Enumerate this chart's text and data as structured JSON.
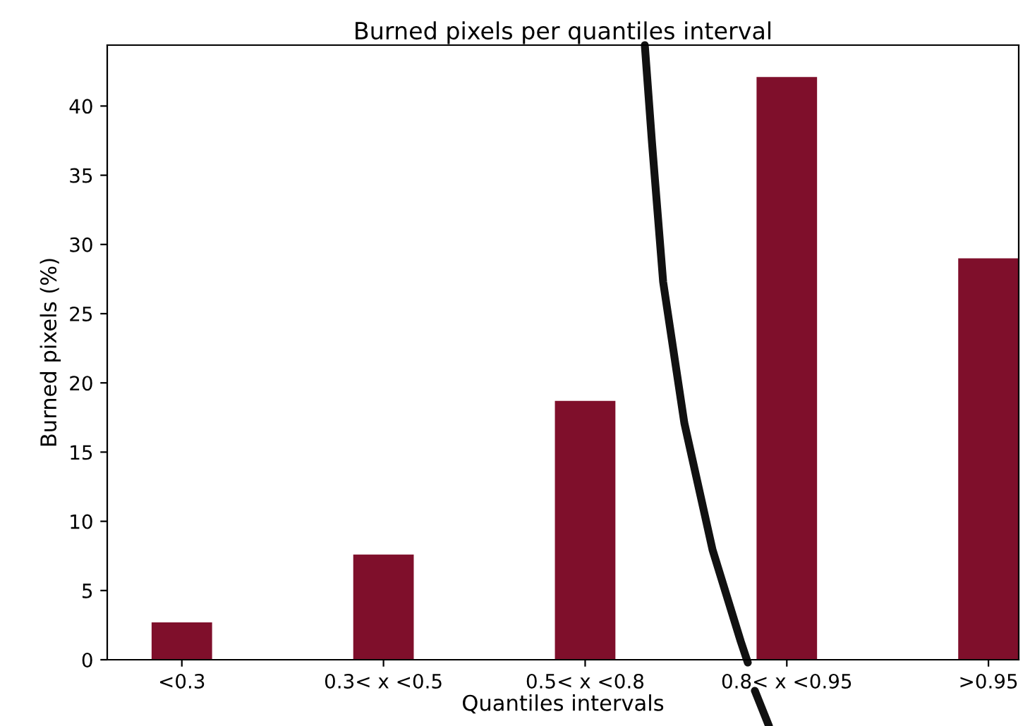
{
  "chart_data": {
    "type": "bar",
    "title": "Burned pixels per quantiles interval",
    "xlabel": "Quantiles intervals",
    "ylabel": "Burned pixels (%)",
    "categories": [
      "<0.3",
      "0.3< x <0.5",
      "0.5< x <0.8",
      "0.8< x <0.95",
      ">0.95"
    ],
    "values": [
      2.7,
      7.6,
      18.7,
      42.1,
      29.0
    ],
    "color": "#7f0f2b",
    "ylim": [
      0,
      44.4
    ],
    "yticks": [
      0,
      5,
      10,
      15,
      20,
      25,
      30,
      35,
      40
    ],
    "grid": false,
    "legend": false
  }
}
